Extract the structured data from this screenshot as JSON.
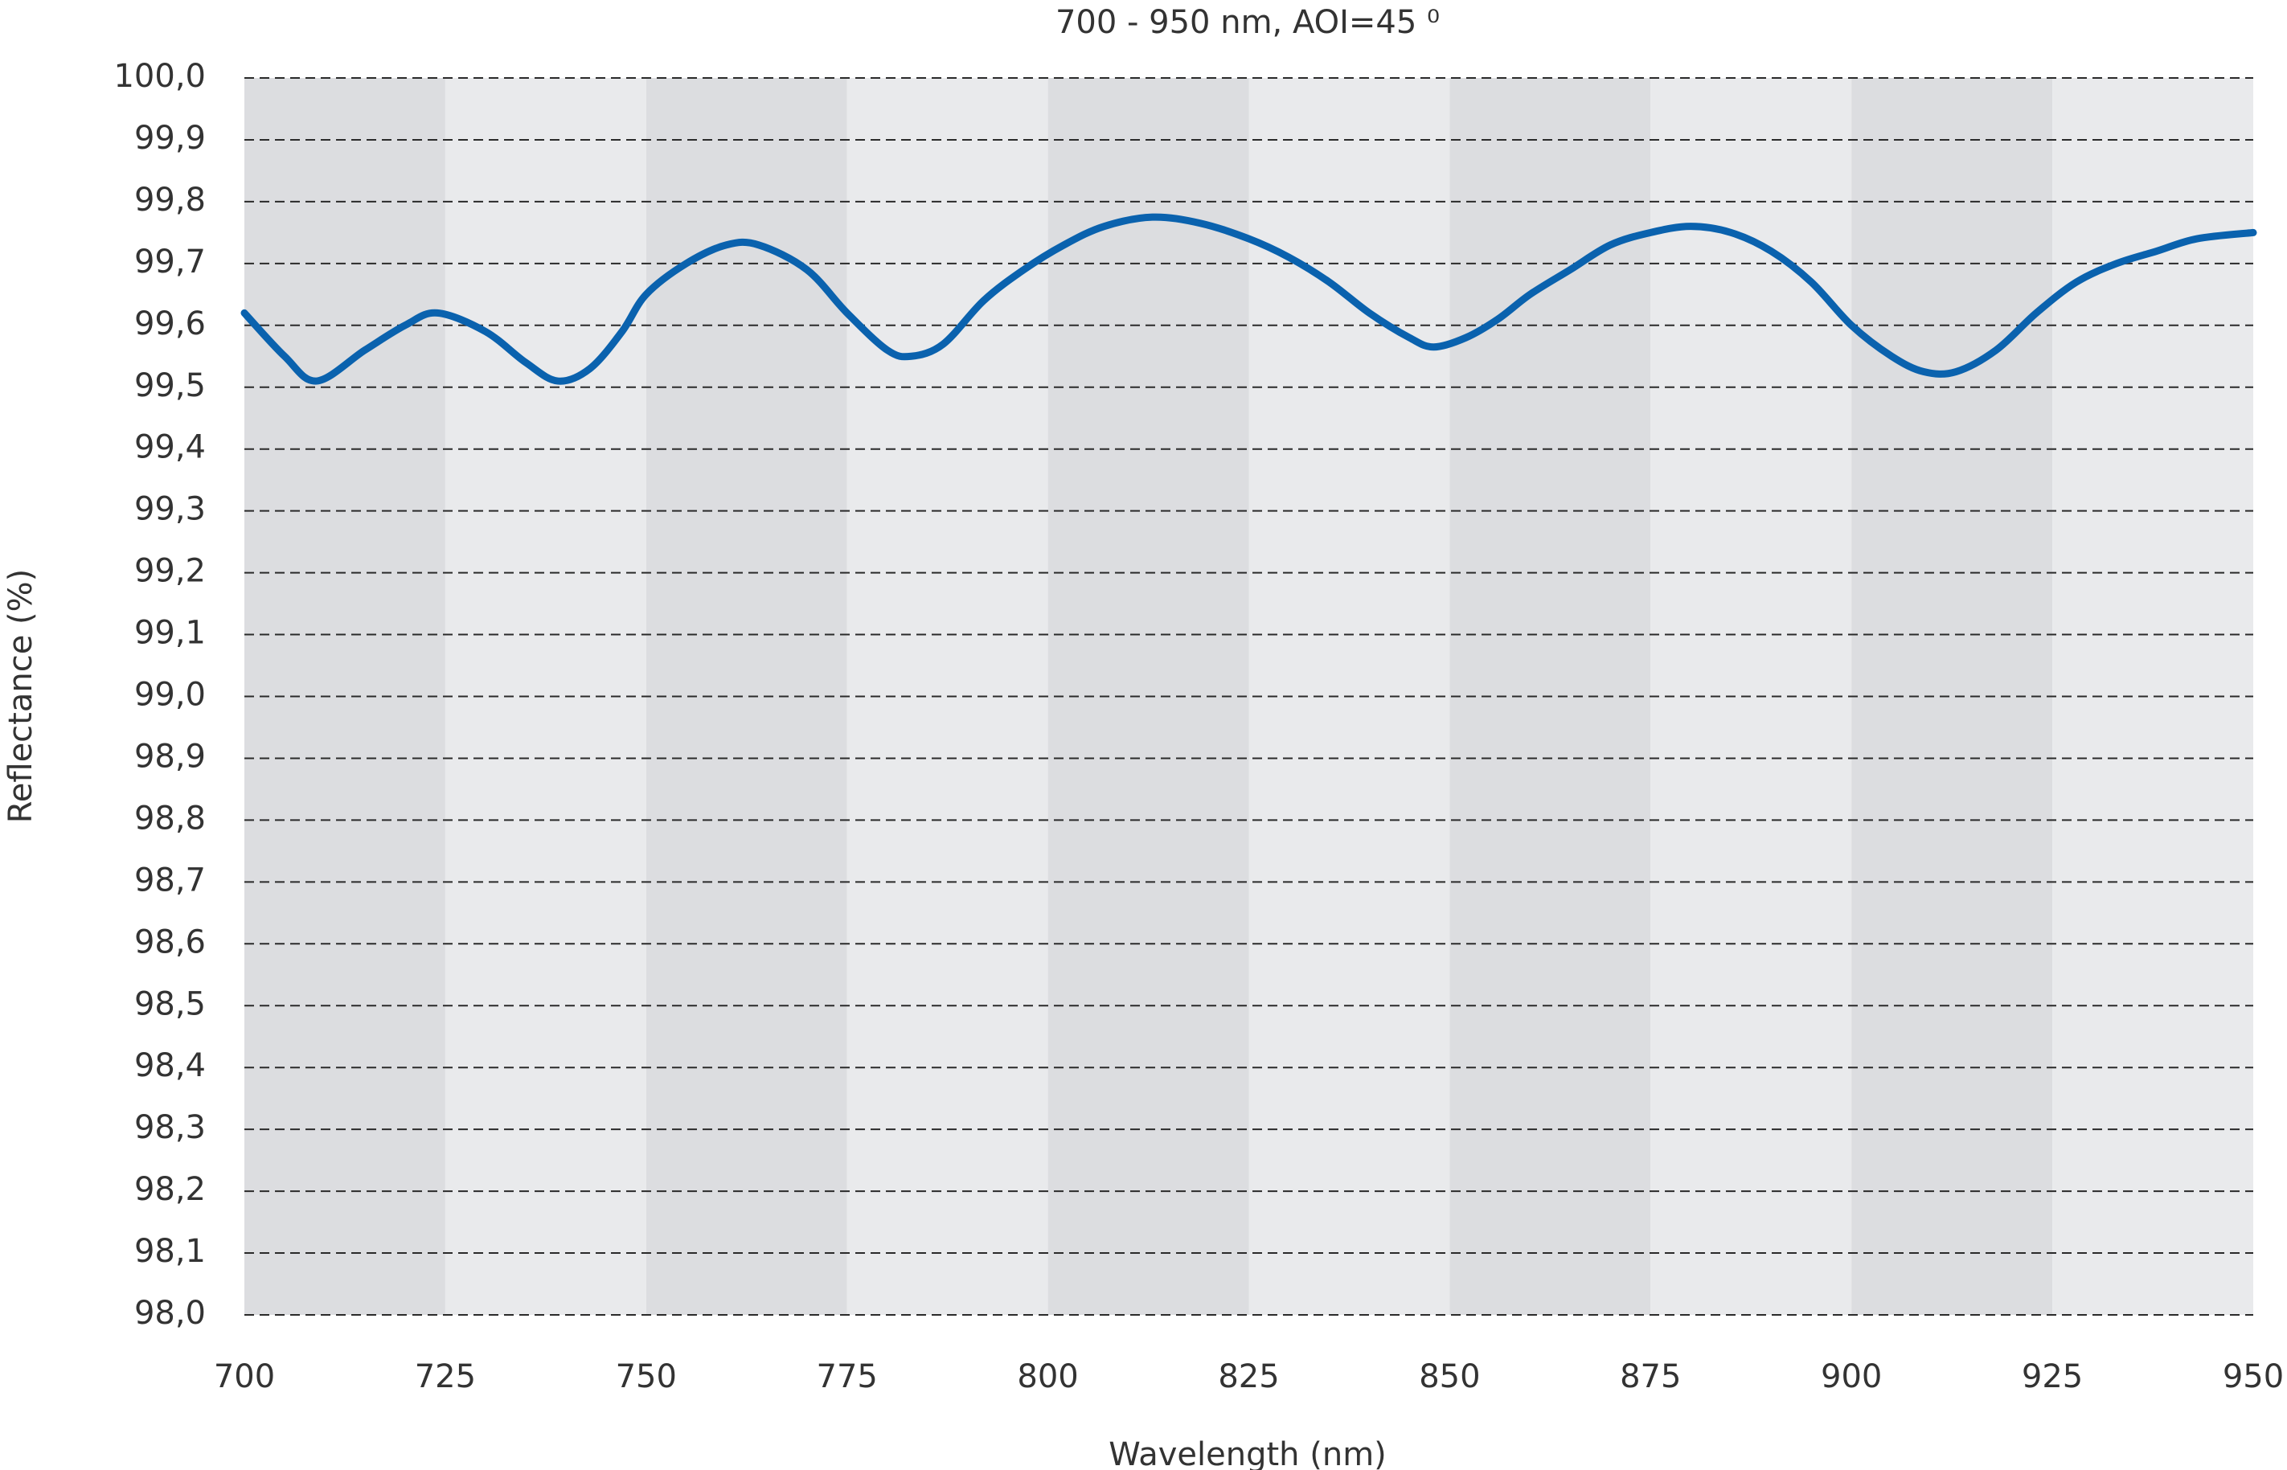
{
  "chart_data": {
    "type": "line",
    "title": "700 - 950 nm, AOI=45 ⁰",
    "x_label": "Wavelength (nm)",
    "y_label": "Reflectance (%)",
    "color": "#0a62ae",
    "grid": true,
    "xlim": [
      700,
      950
    ],
    "xticks": [
      700,
      725,
      750,
      775,
      800,
      825,
      850,
      875,
      900,
      925,
      950
    ],
    "ylim": [
      98.0,
      100.0
    ],
    "yticks": [
      {
        "value": 98.0,
        "label": "98,0"
      },
      {
        "value": 98.1,
        "label": "98,1"
      },
      {
        "value": 98.2,
        "label": "98,2"
      },
      {
        "value": 98.3,
        "label": "98,3"
      },
      {
        "value": 98.4,
        "label": "98,4"
      },
      {
        "value": 98.5,
        "label": "98,5"
      },
      {
        "value": 98.6,
        "label": "98,6"
      },
      {
        "value": 98.7,
        "label": "98,7"
      },
      {
        "value": 98.8,
        "label": "98,8"
      },
      {
        "value": 98.9,
        "label": "98,9"
      },
      {
        "value": 99.0,
        "label": "99,0"
      },
      {
        "value": 99.1,
        "label": "99,1"
      },
      {
        "value": 99.2,
        "label": "99,2"
      },
      {
        "value": 99.3,
        "label": "99,3"
      },
      {
        "value": 99.4,
        "label": "99,4"
      },
      {
        "value": 99.5,
        "label": "99,5"
      },
      {
        "value": 99.6,
        "label": "99,6"
      },
      {
        "value": 99.7,
        "label": "99,7"
      },
      {
        "value": 99.8,
        "label": "99,8"
      },
      {
        "value": 99.9,
        "label": "99,9"
      },
      {
        "value": 100.0,
        "label": "100,0"
      }
    ],
    "x": [
      700,
      705,
      709,
      715,
      720,
      724,
      730,
      735,
      739,
      743,
      747,
      750,
      755,
      760,
      764,
      770,
      775,
      780,
      783,
      787,
      792,
      797,
      802,
      807,
      813,
      819,
      825,
      830,
      835,
      840,
      845,
      848,
      852,
      856,
      860,
      865,
      870,
      875,
      880,
      885,
      890,
      895,
      900,
      905,
      909,
      913,
      918,
      923,
      928,
      933,
      938,
      943,
      950
    ],
    "values": [
      99.62,
      99.55,
      99.51,
      99.56,
      99.6,
      99.62,
      99.59,
      99.54,
      99.51,
      99.53,
      99.59,
      99.65,
      99.7,
      99.73,
      99.73,
      99.69,
      99.62,
      99.56,
      99.55,
      99.57,
      99.64,
      99.69,
      99.73,
      99.76,
      99.775,
      99.765,
      99.74,
      99.71,
      99.67,
      99.62,
      99.58,
      99.565,
      99.58,
      99.61,
      99.65,
      99.69,
      99.73,
      99.75,
      99.76,
      99.75,
      99.72,
      99.67,
      99.6,
      99.55,
      99.525,
      99.525,
      99.56,
      99.62,
      99.67,
      99.7,
      99.72,
      99.74,
      99.75
    ]
  }
}
